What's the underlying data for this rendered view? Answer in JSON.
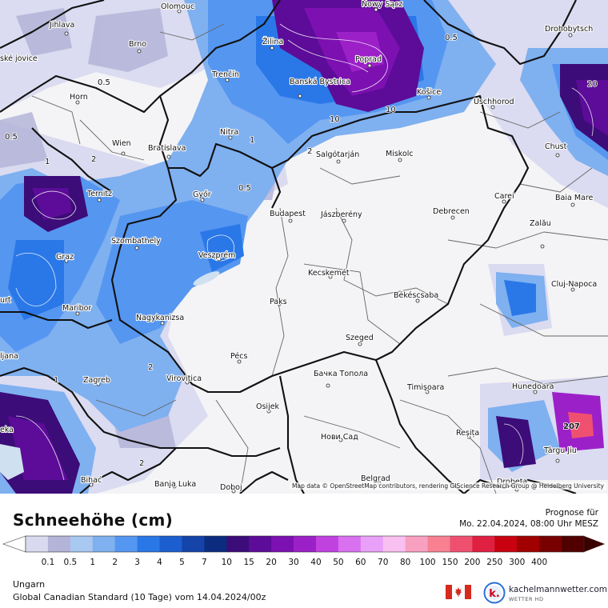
{
  "title": "Schneehöhe (cm)",
  "forecast": {
    "label": "Prognose für",
    "valid": "Mo. 22.04.2024, 08:00 Uhr MESZ"
  },
  "region": "Ungarn",
  "model": "Global Canadian Standard (10 Tage) vom 14.04.2024/00z",
  "attribution": "Map data © OpenStreetMap contributors, rendering GIScience Research Group @ Heidelberg University",
  "brand": {
    "name": "kachelmannwetter.com",
    "sub": "WETTER HD"
  },
  "legend": {
    "labels": [
      "0.1",
      "0.5",
      "1",
      "2",
      "3",
      "4",
      "5",
      "7",
      "10",
      "15",
      "20",
      "30",
      "40",
      "50",
      "60",
      "70",
      "80",
      "100",
      "150",
      "200",
      "250",
      "300",
      "400"
    ],
    "colors": [
      "#d9d9f0",
      "#b4b4d8",
      "#a8c8f0",
      "#7fb0f0",
      "#5596f0",
      "#2a78e8",
      "#1c5ed0",
      "#1444a8",
      "#0c2c80",
      "#3c0c78",
      "#5c0c98",
      "#7c10b0",
      "#9c20c8",
      "#c040e0",
      "#d870f0",
      "#e8a0f8",
      "#f8c0f0",
      "#f8a0c0",
      "#f88090",
      "#f05070",
      "#e02040",
      "#c80010",
      "#a00000",
      "#780000",
      "#500000"
    ]
  },
  "map": {
    "cities": [
      {
        "name": "Olomouc"
      },
      {
        "name": "Nowy Sącz"
      },
      {
        "name": "Jihlava"
      },
      {
        "name": "Brno"
      },
      {
        "name": "Žilina"
      },
      {
        "name": "Poprad"
      },
      {
        "name": "Drohobytsch"
      },
      {
        "name": "Trenčín"
      },
      {
        "name": "Banská Bystrica"
      },
      {
        "name": "Košice"
      },
      {
        "name": "Uschhorod"
      },
      {
        "name": "Horn"
      },
      {
        "name": "Nitra"
      },
      {
        "name": "Wien"
      },
      {
        "name": "Bratislava"
      },
      {
        "name": "Salgótarján"
      },
      {
        "name": "Miskolc"
      },
      {
        "name": "Chust"
      },
      {
        "name": "Ternitz"
      },
      {
        "name": "Győr"
      },
      {
        "name": "Carei"
      },
      {
        "name": "Baia Mare"
      },
      {
        "name": "Budapest"
      },
      {
        "name": "Jászberény"
      },
      {
        "name": "Debrecen"
      },
      {
        "name": "Szombathely"
      },
      {
        "name": "Zalău"
      },
      {
        "name": "Graz"
      },
      {
        "name": "Veszprém"
      },
      {
        "name": "Kecskemét"
      },
      {
        "name": "Cluj-Napoca"
      },
      {
        "name": "Paks"
      },
      {
        "name": "Békéscsaba"
      },
      {
        "name": "Maribor"
      },
      {
        "name": "Nagykanizsa"
      },
      {
        "name": "Szeged"
      },
      {
        "name": "Pécs"
      },
      {
        "name": "Бачка Топола"
      },
      {
        "name": "Virovitica"
      },
      {
        "name": "Zagreb"
      },
      {
        "name": "Timișoara"
      },
      {
        "name": "Hunedoara"
      },
      {
        "name": "Osijek"
      },
      {
        "name": "Нови Сад"
      },
      {
        "name": "Reșița"
      },
      {
        "name": "Târgu Jiu"
      },
      {
        "name": "Bihać"
      },
      {
        "name": "Banja Luka"
      },
      {
        "name": "Belgrad"
      },
      {
        "name": "Doboj"
      },
      {
        "name": "Drobeta"
      },
      {
        "name": "urt"
      },
      {
        "name": "ljana"
      },
      {
        "name": "eka"
      },
      {
        "name": "ské jovice"
      }
    ],
    "contour_labels": [
      "0.5",
      "0.5",
      "0.5",
      "0.5",
      "1",
      "1",
      "1",
      "2",
      "2",
      "2",
      "2",
      "10",
      "10",
      "20"
    ],
    "max_label": "207"
  }
}
